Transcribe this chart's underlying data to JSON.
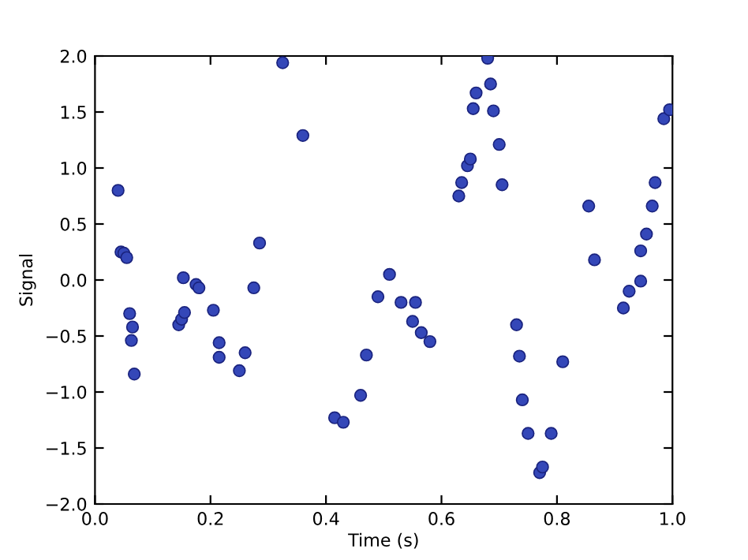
{
  "chart_data": {
    "type": "scatter",
    "xlabel": "Time (s)",
    "ylabel": "Signal",
    "x": [
      0.04,
      0.045,
      0.05,
      0.055,
      0.06,
      0.065,
      0.063,
      0.068,
      0.145,
      0.15,
      0.155,
      0.153,
      0.175,
      0.18,
      0.205,
      0.215,
      0.215,
      0.25,
      0.26,
      0.275,
      0.285,
      0.325,
      0.36,
      0.415,
      0.43,
      0.46,
      0.47,
      0.49,
      0.51,
      0.53,
      0.555,
      0.55,
      0.565,
      0.58,
      0.63,
      0.635,
      0.645,
      0.65,
      0.655,
      0.66,
      0.68,
      0.685,
      0.69,
      0.7,
      0.705,
      0.73,
      0.735,
      0.74,
      0.75,
      0.77,
      0.775,
      0.79,
      0.81,
      0.855,
      0.865,
      0.915,
      0.925,
      0.945,
      0.945,
      0.955,
      0.965,
      0.97,
      0.985,
      0.995
    ],
    "series": [
      {
        "color": "#3447b8",
        "values": [
          0.8,
          0.25,
          0.24,
          0.2,
          -0.3,
          -0.42,
          -0.54,
          -0.84,
          -0.4,
          -0.35,
          -0.29,
          0.02,
          -0.04,
          -0.07,
          -0.27,
          -0.56,
          -0.69,
          -0.81,
          -0.65,
          -0.07,
          0.33,
          1.94,
          1.29,
          -1.23,
          -1.27,
          -1.03,
          -0.67,
          -0.15,
          0.05,
          -0.2,
          -0.2,
          -0.37,
          -0.47,
          -0.55,
          0.75,
          0.87,
          1.02,
          1.08,
          1.53,
          1.67,
          1.98,
          1.75,
          1.51,
          1.21,
          0.85,
          -0.4,
          -0.68,
          -1.07,
          -1.37,
          -1.72,
          -1.67,
          -1.37,
          -0.73,
          0.66,
          0.18,
          -0.25,
          -0.1,
          -0.01,
          0.26,
          0.41,
          0.66,
          0.87,
          1.44,
          1.52
        ]
      }
    ],
    "xlim": [
      0.0,
      1.0
    ],
    "xticks": [
      {
        "value": 0.0,
        "label": "0.0"
      },
      0.2,
      0.4,
      0.6,
      0.8,
      {
        "value": 1.0,
        "label": "1.0"
      }
    ],
    "ylim": [
      -2.0,
      2.0
    ],
    "yticks": [
      {
        "value": -2.0,
        "label": "−2.0"
      },
      {
        "value": -1.5,
        "label": "−1.5"
      },
      {
        "value": -1.0,
        "label": "−1.0"
      },
      {
        "value": -0.5,
        "label": "−0.5"
      },
      {
        "value": 0.0,
        "label": "0.0"
      },
      0.5,
      {
        "value": 1.0,
        "label": "1.0"
      },
      1.5,
      {
        "value": 2.0,
        "label": "2.0"
      }
    ],
    "grid": false,
    "marker": "circle"
  }
}
